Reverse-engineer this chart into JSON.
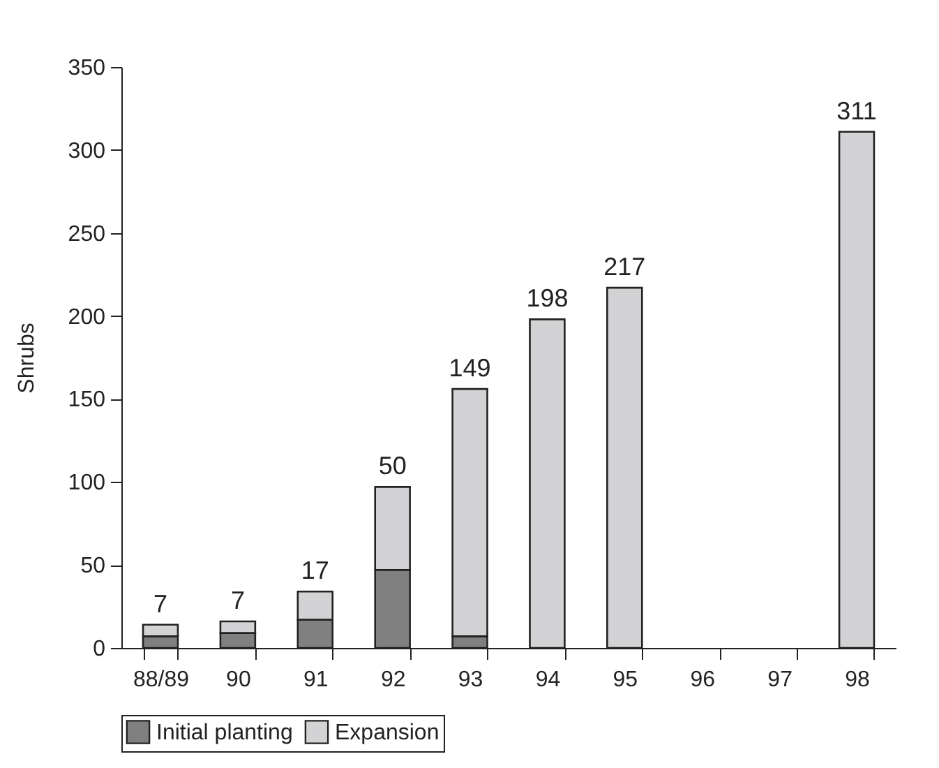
{
  "chart_data": {
    "type": "bar",
    "stacked": true,
    "ylabel": "Shrubs",
    "categories": [
      "88/89",
      "90",
      "91",
      "92",
      "93",
      "94",
      "95",
      "96",
      "97",
      "98"
    ],
    "series": [
      {
        "name": "Initial planting",
        "color": "#808080",
        "values": [
          7,
          9,
          17,
          47,
          7,
          0,
          0,
          null,
          null,
          0
        ]
      },
      {
        "name": "Expansion",
        "color": "#d3d3d5",
        "values": [
          7,
          7,
          17,
          50,
          149,
          198,
          217,
          null,
          null,
          311
        ],
        "value_labels": [
          "7",
          "7",
          "17",
          "50",
          "149",
          "198",
          "217",
          null,
          null,
          "311"
        ]
      }
    ],
    "ylim": [
      0,
      350
    ],
    "yticks": [
      0,
      50,
      100,
      150,
      200,
      250,
      300,
      350
    ],
    "grid": false,
    "legend": "bottom"
  }
}
